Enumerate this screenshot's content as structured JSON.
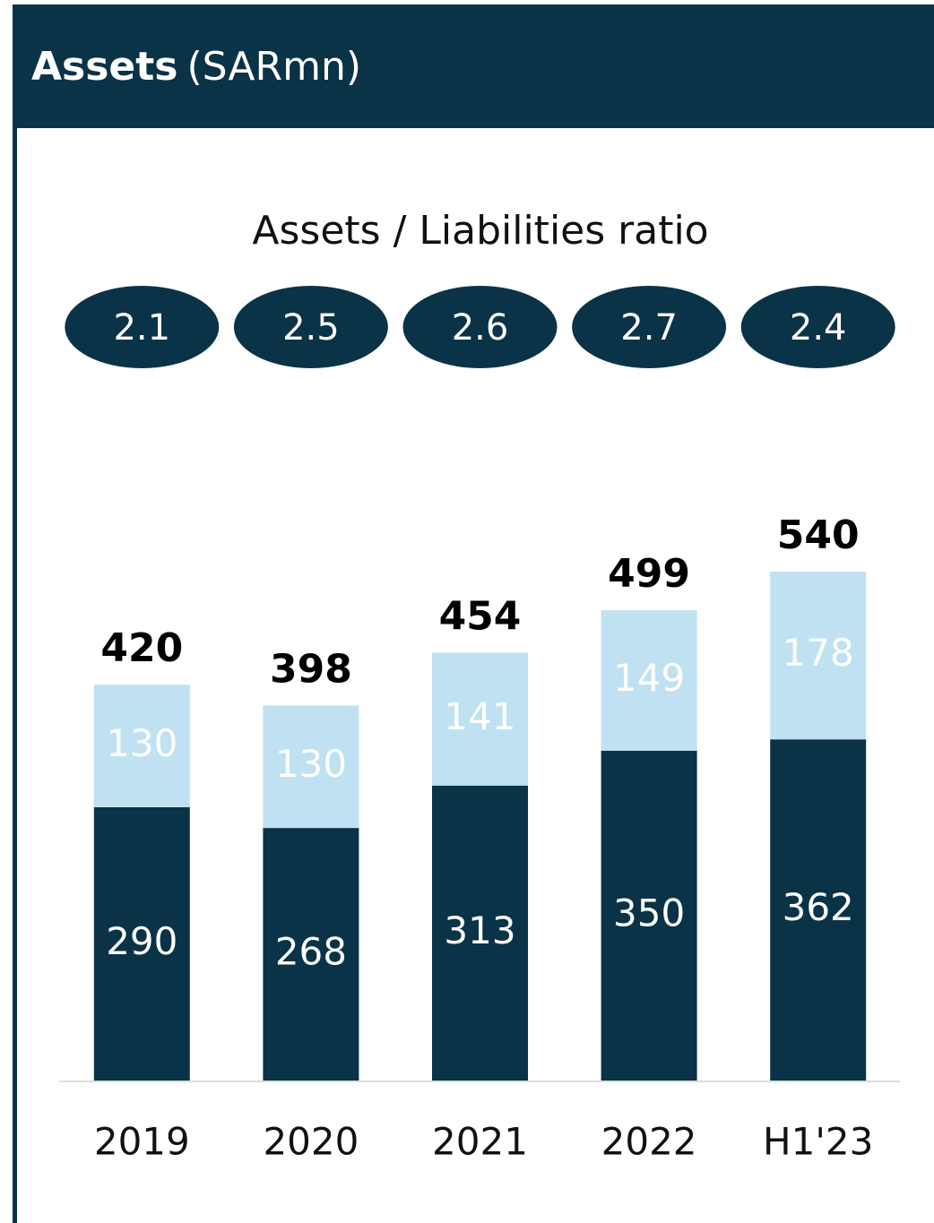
{
  "chart_data": {
    "type": "stacked-bar",
    "title": "Assets",
    "unit": "(SARmn)",
    "ratio_label": "Assets / Liabilities ratio",
    "ratios": [
      "2.1",
      "2.5",
      "2.6",
      "2.7",
      "2.4"
    ],
    "categories": [
      "2019",
      "2020",
      "2021",
      "2022",
      "H1'23"
    ],
    "series": [
      {
        "color": "#0b3347",
        "values": [
          290,
          268,
          313,
          350,
          362
        ]
      },
      {
        "color": "#bfe1f2",
        "values": [
          130,
          130,
          141,
          149,
          178
        ]
      }
    ],
    "totals": [
      420,
      398,
      454,
      499,
      540
    ],
    "header_color": "#0b3347"
  }
}
